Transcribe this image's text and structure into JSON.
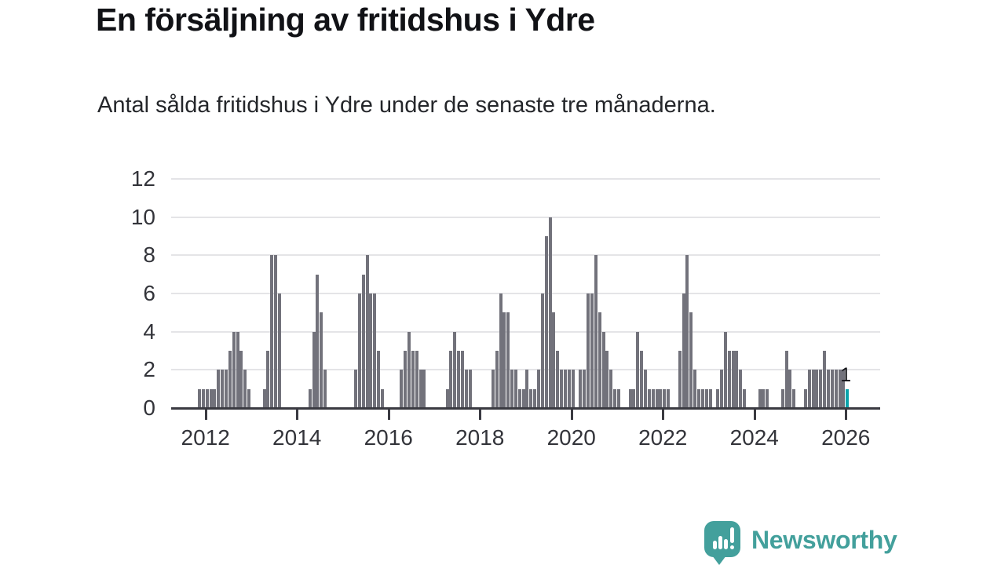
{
  "header": {
    "title": "En försäljning av fritidshus i Ydre",
    "subtitle": "Antal sålda fritidshus i Ydre under de senaste tre månaderna."
  },
  "footer": {
    "brand": "Newsworthy",
    "brand_color": "#43a09c"
  },
  "chart_data": {
    "type": "bar",
    "title": "En försäljning av fritidshus i Ydre",
    "xlabel": "",
    "ylabel": "",
    "x_unit": "month",
    "x_start_approx": "2011-11",
    "x_end_approx": "2026-01",
    "x_ticks": [
      2012,
      2014,
      2016,
      2018,
      2020,
      2022,
      2024,
      2026
    ],
    "y_ticks": [
      0,
      2,
      4,
      6,
      8,
      10,
      12
    ],
    "ylim": [
      0,
      12
    ],
    "grid": true,
    "bar_color": "#72727b",
    "grid_color": "#e4e4e7",
    "axis_color": "#3a3a41",
    "values": [
      1,
      1,
      1,
      1,
      1,
      2,
      2,
      2,
      3,
      4,
      4,
      3,
      2,
      1,
      0,
      0,
      0,
      1,
      3,
      8,
      8,
      6,
      0,
      0,
      0,
      0,
      0,
      0,
      0,
      1,
      4,
      7,
      5,
      2,
      0,
      0,
      0,
      0,
      0,
      0,
      0,
      2,
      6,
      7,
      8,
      6,
      6,
      3,
      1,
      0,
      0,
      0,
      0,
      2,
      3,
      4,
      3,
      3,
      2,
      2,
      0,
      0,
      0,
      0,
      0,
      1,
      3,
      4,
      3,
      3,
      2,
      2,
      0,
      0,
      0,
      0,
      0,
      2,
      3,
      6,
      5,
      5,
      2,
      2,
      1,
      1,
      2,
      1,
      1,
      2,
      6,
      9,
      10,
      5,
      3,
      2,
      2,
      2,
      2,
      0,
      2,
      2,
      6,
      6,
      8,
      5,
      4,
      3,
      2,
      1,
      1,
      0,
      0,
      1,
      1,
      4,
      3,
      2,
      1,
      1,
      1,
      1,
      1,
      1,
      0,
      0,
      3,
      6,
      8,
      5,
      2,
      1,
      1,
      1,
      1,
      0,
      1,
      2,
      4,
      3,
      3,
      3,
      2,
      1,
      0,
      0,
      0,
      1,
      1,
      1,
      0,
      0,
      0,
      1,
      3,
      2,
      1,
      0,
      0,
      1,
      2,
      2,
      2,
      2,
      3,
      2,
      2,
      2,
      2,
      2,
      1
    ],
    "highlight": {
      "index": 170,
      "value": 1,
      "label": "1",
      "color": "#0aa3ab"
    }
  }
}
